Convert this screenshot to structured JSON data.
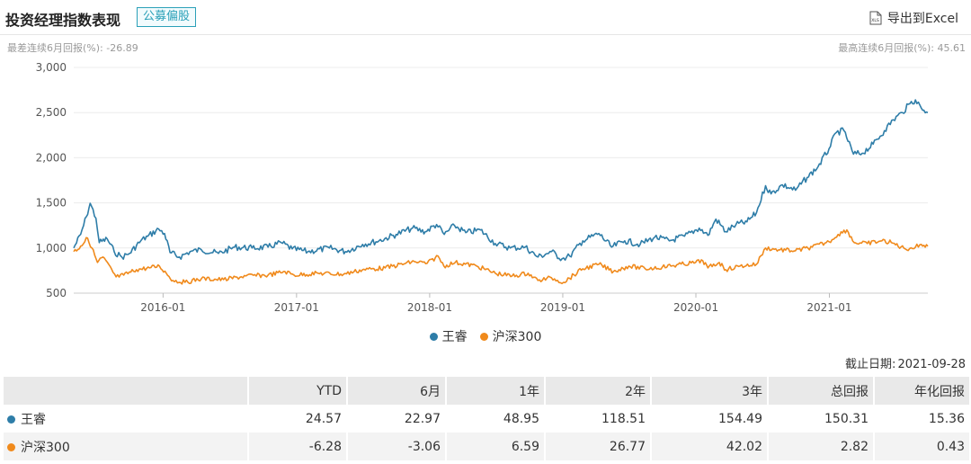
{
  "header": {
    "title": "投资经理指数表现",
    "tag": "公募偏股",
    "export_label": "导出到Excel"
  },
  "subheader": {
    "worst_label": "最差连续6月回报(%):",
    "worst_value": "-26.89",
    "best_label": "最高连续6月回报(%):",
    "best_value": "45.61"
  },
  "chart_data": {
    "type": "line",
    "title": "",
    "xlabel": "",
    "ylabel": "",
    "ylim": [
      500,
      3000
    ],
    "yticks": [
      "500",
      "1,000",
      "1,500",
      "2,000",
      "2,500",
      "3,000"
    ],
    "xticks": [
      "2016-01",
      "2017-01",
      "2018-01",
      "2019-01",
      "2020-01",
      "2021-01"
    ],
    "grid": true,
    "legend_position": "bottom",
    "series": [
      {
        "name": "王睿",
        "color": "#2e7da8",
        "points": [
          [
            "2015-05-01",
            1000
          ],
          [
            "2015-05-20",
            1150
          ],
          [
            "2015-06-05",
            1350
          ],
          [
            "2015-06-15",
            1495
          ],
          [
            "2015-07-01",
            1330
          ],
          [
            "2015-07-10",
            1060
          ],
          [
            "2015-08-01",
            1100
          ],
          [
            "2015-08-20",
            960
          ],
          [
            "2015-09-10",
            900
          ],
          [
            "2015-10-01",
            940
          ],
          [
            "2015-11-01",
            1080
          ],
          [
            "2015-11-20",
            1130
          ],
          [
            "2015-12-20",
            1210
          ],
          [
            "2016-01-05",
            1160
          ],
          [
            "2016-01-20",
            950
          ],
          [
            "2016-02-15",
            900
          ],
          [
            "2016-03-15",
            960
          ],
          [
            "2016-04-15",
            980
          ],
          [
            "2016-06-01",
            940
          ],
          [
            "2016-07-15",
            1010
          ],
          [
            "2016-09-01",
            1000
          ],
          [
            "2016-10-15",
            1010
          ],
          [
            "2016-11-20",
            1060
          ],
          [
            "2016-12-20",
            990
          ],
          [
            "2017-02-01",
            960
          ],
          [
            "2017-04-01",
            1000
          ],
          [
            "2017-05-15",
            960
          ],
          [
            "2017-07-01",
            1040
          ],
          [
            "2017-08-15",
            1080
          ],
          [
            "2017-10-01",
            1150
          ],
          [
            "2017-11-15",
            1220
          ],
          [
            "2017-12-20",
            1180
          ],
          [
            "2018-01-20",
            1260
          ],
          [
            "2018-02-10",
            1150
          ],
          [
            "2018-03-10",
            1250
          ],
          [
            "2018-04-10",
            1170
          ],
          [
            "2018-05-20",
            1200
          ],
          [
            "2018-06-30",
            1050
          ],
          [
            "2018-08-10",
            1000
          ],
          [
            "2018-09-20",
            1010
          ],
          [
            "2018-10-25",
            900
          ],
          [
            "2018-12-01",
            960
          ],
          [
            "2018-12-30",
            880
          ],
          [
            "2019-01-20",
            910
          ],
          [
            "2019-02-25",
            1080
          ],
          [
            "2019-04-10",
            1160
          ],
          [
            "2019-05-15",
            1010
          ],
          [
            "2019-06-20",
            1080
          ],
          [
            "2019-08-01",
            1040
          ],
          [
            "2019-09-10",
            1120
          ],
          [
            "2019-10-20",
            1080
          ],
          [
            "2019-12-01",
            1130
          ],
          [
            "2020-01-10",
            1220
          ],
          [
            "2020-02-03",
            1140
          ],
          [
            "2020-02-25",
            1320
          ],
          [
            "2020-03-23",
            1180
          ],
          [
            "2020-04-20",
            1260
          ],
          [
            "2020-05-20",
            1290
          ],
          [
            "2020-06-15",
            1390
          ],
          [
            "2020-07-10",
            1690
          ],
          [
            "2020-07-25",
            1600
          ],
          [
            "2020-08-25",
            1700
          ],
          [
            "2020-09-30",
            1640
          ],
          [
            "2020-11-01",
            1780
          ],
          [
            "2020-12-01",
            1900
          ],
          [
            "2020-12-31",
            2100
          ],
          [
            "2021-01-20",
            2280
          ],
          [
            "2021-02-10",
            2300
          ],
          [
            "2021-03-08",
            2040
          ],
          [
            "2021-04-01",
            2050
          ],
          [
            "2021-05-01",
            2150
          ],
          [
            "2021-06-01",
            2300
          ],
          [
            "2021-06-25",
            2420
          ],
          [
            "2021-07-20",
            2500
          ],
          [
            "2021-08-10",
            2600
          ],
          [
            "2021-08-25",
            2640
          ],
          [
            "2021-09-10",
            2550
          ],
          [
            "2021-09-28",
            2500
          ]
        ]
      },
      {
        "name": "沪深300",
        "color": "#f08a1c",
        "points": [
          [
            "2015-05-01",
            960
          ],
          [
            "2015-05-20",
            1020
          ],
          [
            "2015-06-08",
            1110
          ],
          [
            "2015-06-20",
            1000
          ],
          [
            "2015-07-05",
            840
          ],
          [
            "2015-07-20",
            900
          ],
          [
            "2015-08-25",
            680
          ],
          [
            "2015-09-15",
            700
          ],
          [
            "2015-10-20",
            760
          ],
          [
            "2015-11-25",
            780
          ],
          [
            "2015-12-22",
            800
          ],
          [
            "2016-01-10",
            720
          ],
          [
            "2016-01-28",
            640
          ],
          [
            "2016-03-01",
            620
          ],
          [
            "2016-04-15",
            660
          ],
          [
            "2016-06-15",
            650
          ],
          [
            "2016-08-15",
            690
          ],
          [
            "2016-10-15",
            700
          ],
          [
            "2016-11-30",
            740
          ],
          [
            "2016-12-25",
            700
          ],
          [
            "2017-03-01",
            720
          ],
          [
            "2017-05-10",
            710
          ],
          [
            "2017-07-01",
            760
          ],
          [
            "2017-09-01",
            780
          ],
          [
            "2017-11-20",
            850
          ],
          [
            "2017-12-25",
            830
          ],
          [
            "2018-01-24",
            910
          ],
          [
            "2018-02-09",
            800
          ],
          [
            "2018-03-12",
            840
          ],
          [
            "2018-05-10",
            800
          ],
          [
            "2018-06-30",
            720
          ],
          [
            "2018-08-15",
            690
          ],
          [
            "2018-09-28",
            720
          ],
          [
            "2018-10-25",
            640
          ],
          [
            "2018-12-01",
            670
          ],
          [
            "2019-01-03",
            620
          ],
          [
            "2019-02-25",
            770
          ],
          [
            "2019-04-10",
            820
          ],
          [
            "2019-05-20",
            740
          ],
          [
            "2019-07-01",
            800
          ],
          [
            "2019-08-15",
            770
          ],
          [
            "2019-10-01",
            790
          ],
          [
            "2019-12-31",
            840
          ],
          [
            "2020-01-20",
            860
          ],
          [
            "2020-02-03",
            780
          ],
          [
            "2020-03-05",
            840
          ],
          [
            "2020-03-23",
            760
          ],
          [
            "2020-05-01",
            800
          ],
          [
            "2020-06-15",
            820
          ],
          [
            "2020-07-10",
            1000
          ],
          [
            "2020-08-15",
            980
          ],
          [
            "2020-09-30",
            970
          ],
          [
            "2020-11-15",
            1010
          ],
          [
            "2020-12-31",
            1070
          ],
          [
            "2021-01-25",
            1150
          ],
          [
            "2021-02-18",
            1200
          ],
          [
            "2021-03-10",
            1060
          ],
          [
            "2021-04-15",
            1050
          ],
          [
            "2021-05-25",
            1080
          ],
          [
            "2021-06-20",
            1060
          ],
          [
            "2021-07-28",
            990
          ],
          [
            "2021-08-25",
            1010
          ],
          [
            "2021-09-10",
            1040
          ],
          [
            "2021-09-28",
            1020
          ]
        ]
      }
    ]
  },
  "legend": {
    "items": [
      {
        "label": "王睿",
        "color": "#2e7da8"
      },
      {
        "label": "沪深300",
        "color": "#f08a1c"
      }
    ]
  },
  "asof": {
    "label": "截止日期:",
    "value": "2021-09-28"
  },
  "table": {
    "headers": [
      "",
      "YTD",
      "6月",
      "1年",
      "2年",
      "3年",
      "总回报",
      "年化回报"
    ],
    "rows": [
      {
        "name": "王睿",
        "color": "#2e7da8",
        "values": [
          "24.57",
          "22.97",
          "48.95",
          "118.51",
          "154.49",
          "150.31",
          "15.36"
        ]
      },
      {
        "name": "沪深300",
        "color": "#f08a1c",
        "values": [
          "-6.28",
          "-3.06",
          "6.59",
          "26.77",
          "42.02",
          "2.82",
          "0.43"
        ]
      }
    ]
  }
}
